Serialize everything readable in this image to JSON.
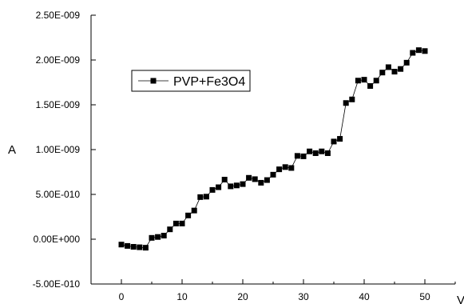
{
  "chart_data": {
    "type": "line",
    "title": "",
    "xlabel": "V",
    "ylabel": "A",
    "xlim": [
      -5,
      55
    ],
    "ylim": [
      -5e-10,
      2.5e-09
    ],
    "x_ticks": [
      0,
      10,
      20,
      30,
      40,
      50
    ],
    "x_tick_labels": [
      "0",
      "10",
      "20",
      "30",
      "40",
      "50"
    ],
    "y_ticks": [
      -5e-10,
      0,
      5e-10,
      1e-09,
      1.5e-09,
      2e-09,
      2.5e-09
    ],
    "y_tick_labels": [
      "-5.00E-010",
      "0.00E+000",
      "5.00E-010",
      "1.00E-009",
      "1.50E-009",
      "2.00E-009",
      "2.50E-009"
    ],
    "grid": false,
    "legend_position": "top-left",
    "series": [
      {
        "name": "PVP+Fe3O4",
        "marker": "square",
        "color": "#000000",
        "x": [
          0,
          1,
          2,
          3,
          4,
          5,
          6,
          7,
          8,
          9,
          10,
          11,
          12,
          13,
          14,
          15,
          16,
          17,
          18,
          19,
          20,
          21,
          22,
          23,
          24,
          25,
          26,
          27,
          28,
          29,
          30,
          31,
          32,
          33,
          34,
          35,
          36,
          37,
          38,
          39,
          40,
          41,
          42,
          43,
          44,
          45,
          46,
          47,
          48,
          49,
          50
        ],
        "y": [
          -6e-11,
          -7.5e-11,
          -8.5e-11,
          -9e-11,
          -9.5e-11,
          1.5e-11,
          2.5e-11,
          4e-11,
          1.1e-10,
          1.75e-10,
          1.75e-10,
          2.65e-10,
          3.2e-10,
          4.7e-10,
          4.75e-10,
          5.5e-10,
          5.8e-10,
          6.65e-10,
          5.9e-10,
          6e-10,
          6.15e-10,
          6.85e-10,
          6.7e-10,
          6.3e-10,
          6.6e-10,
          7.2e-10,
          7.8e-10,
          8.05e-10,
          7.95e-10,
          9.3e-10,
          9.25e-10,
          9.8e-10,
          9.6e-10,
          9.8e-10,
          9.6e-10,
          1.09e-09,
          1.12e-09,
          1.52e-09,
          1.56e-09,
          1.77e-09,
          1.78e-09,
          1.71e-09,
          1.77e-09,
          1.86e-09,
          1.92e-09,
          1.87e-09,
          1.9e-09,
          1.97e-09,
          2.08e-09,
          2.11e-09,
          2.1e-09
        ]
      }
    ]
  }
}
